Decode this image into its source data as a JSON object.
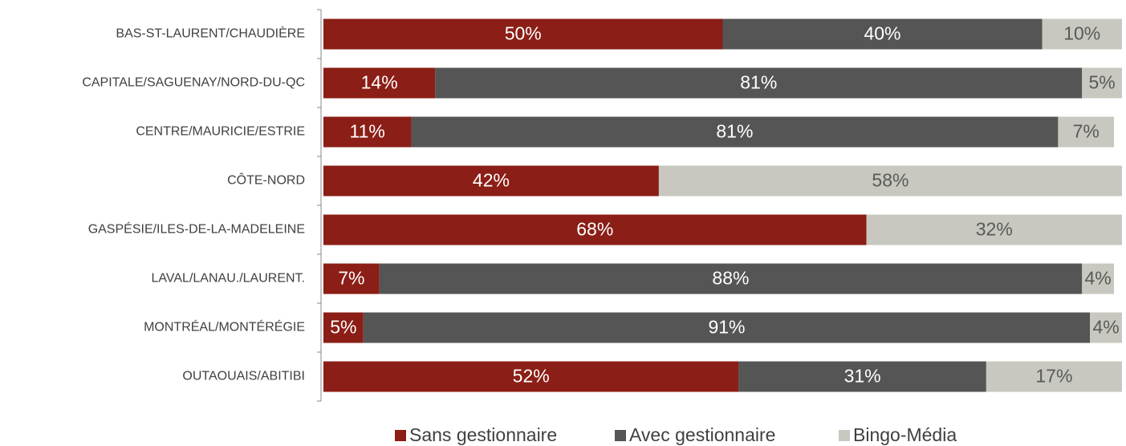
{
  "chart_data": {
    "type": "stacked_barh",
    "categories": [
      "BAS-ST-LAURENT/CHAUDIÈRE",
      "CAPITALE/SAGUENAY/NORD-DU-QC",
      "CENTRE/MAURICIE/ESTRIE",
      "CÔTE-NORD",
      "GASPÉSIE/ILES-DE-LA-MADELEINE",
      "LAVAL/LANAU./LAURENT.",
      "MONTRÉAL/MONTÉRÉGIE",
      "OUTAOUAIS/ABITIBI"
    ],
    "series": [
      {
        "name": "Sans gestionnaire",
        "color": "#8b1e16",
        "label_color": "#ffffff",
        "values": [
          50,
          14,
          11,
          42,
          68,
          7,
          5,
          52
        ],
        "value_labels": [
          "50%",
          "14%",
          "11%",
          "42%",
          "68%",
          "7%",
          "5%",
          "52%"
        ]
      },
      {
        "name": "Avec gestionnaire",
        "color": "#555555",
        "label_color": "#ffffff",
        "values": [
          40,
          81,
          81,
          null,
          null,
          88,
          91,
          31
        ],
        "value_labels": [
          "40%",
          "81%",
          "81%",
          null,
          null,
          "88%",
          "91%",
          "31%"
        ]
      },
      {
        "name": "Bingo-Média",
        "color": "#c8c8c0",
        "label_color": "#595959",
        "values": [
          10,
          5,
          7,
          58,
          32,
          4,
          4,
          17
        ],
        "value_labels": [
          "10%",
          "5%",
          "7%",
          "58%",
          "32%",
          "4%",
          "4%",
          "17%"
        ]
      }
    ],
    "xlim": [
      0,
      100
    ],
    "legend": "bottom"
  }
}
